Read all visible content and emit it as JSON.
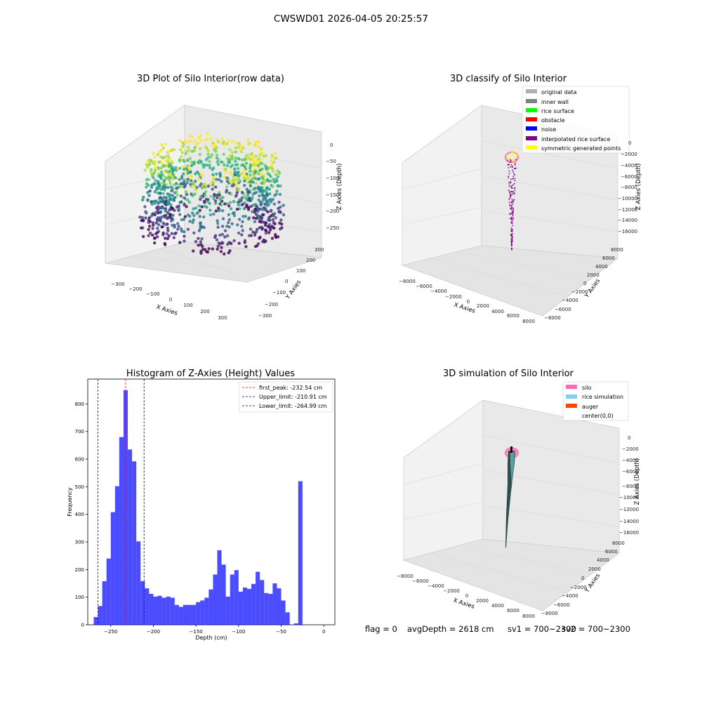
{
  "figure": {
    "suptitle": "CWSWD01 2026-04-05 20:25:57",
    "status": {
      "flag": "flag = 0",
      "avg_depth": "avgDepth = 2618 cm",
      "sv1": "sv1 = 700~2300",
      "sv2": "sv2 = 700~2300"
    }
  },
  "panels": {
    "raw": {
      "title": "3D Plot of Silo Interior(row data)",
      "xlabel": "X Axies",
      "ylabel": "Y Axies",
      "zlabel": "Z Axies (Depth)",
      "x_ticks": [
        "−300",
        "−200",
        "−100",
        "0",
        "100",
        "200",
        "300"
      ],
      "y_ticks": [
        "−300",
        "−200",
        "−100",
        "0",
        "100",
        "200",
        "300"
      ],
      "z_ticks": [
        "0",
        "−50",
        "−100",
        "−150",
        "−200",
        "−250"
      ]
    },
    "classify": {
      "title": "3D classify of Silo Interior",
      "xlabel": "X Axies",
      "ylabel": "Y Axies",
      "zlabel": "Z Axies (Depth)",
      "x_ticks": [
        "−8000",
        "−6000",
        "−4000",
        "−2000",
        "0",
        "2000",
        "4000",
        "6000",
        "8000"
      ],
      "y_ticks": [
        "−8000",
        "−6000",
        "−4000",
        "−2000",
        "0",
        "2000",
        "4000",
        "6000",
        "8000"
      ],
      "z_ticks": [
        "0",
        "−2000",
        "−4000",
        "−6000",
        "−8000",
        "−10000",
        "−12000",
        "−14000",
        "−16000"
      ],
      "legend": [
        {
          "label": "original data",
          "color": "#b0b0b0"
        },
        {
          "label": "inner wall",
          "color": "#808080"
        },
        {
          "label": "rice surface",
          "color": "#00ff00"
        },
        {
          "label": "obstacle",
          "color": "#ff0000"
        },
        {
          "label": "noise",
          "color": "#0000ff"
        },
        {
          "label": "interpolated rice surface",
          "color": "#800080"
        },
        {
          "label": "symmetric generated points",
          "color": "#ffff00"
        }
      ]
    },
    "simulation": {
      "title": "3D simulation of Silo Interior",
      "xlabel": "X Axies",
      "ylabel": "Y Axies",
      "zlabel": "Z Axies (Depth)",
      "x_ticks": [
        "−8000",
        "−6000",
        "−4000",
        "−2000",
        "0",
        "2000",
        "4000",
        "6000",
        "8000"
      ],
      "y_ticks": [
        "−8000",
        "−6000",
        "−4000",
        "−2000",
        "0",
        "2000",
        "4000",
        "6000",
        "8000"
      ],
      "z_ticks": [
        "0",
        "−2000",
        "−4000",
        "−6000",
        "−8000",
        "−10000",
        "−12000",
        "−14000",
        "−16000"
      ],
      "legend": [
        {
          "label": "silo",
          "color": "#ff69b4"
        },
        {
          "label": "rice simulation",
          "color": "#87ceeb"
        },
        {
          "label": "auger",
          "color": "#ff4500"
        },
        {
          "label": "center(0,0)",
          "color": ""
        }
      ]
    }
  },
  "chart_data": [
    {
      "type": "bar",
      "title": "Histogram of Z-Axies (Height) Values",
      "xlabel": "Depth (cm)",
      "ylabel": "Frequency",
      "xlim": [
        -277,
        13
      ],
      "ylim": [
        0,
        890
      ],
      "x_ticks": [
        -250,
        -200,
        -150,
        -100,
        -50,
        0
      ],
      "y_ticks": [
        0,
        100,
        200,
        300,
        400,
        500,
        600,
        700,
        800
      ],
      "bar_color": "#0000ff",
      "bar_opacity": 0.7,
      "grid": false,
      "legend_position": "upper right",
      "bin_start": -270,
      "bin_width": 5,
      "values": [
        28,
        68,
        158,
        240,
        408,
        502,
        680,
        850,
        635,
        592,
        302,
        158,
        132,
        112,
        102,
        105,
        98,
        102,
        98,
        72,
        65,
        72,
        72,
        72,
        82,
        88,
        98,
        128,
        182,
        270,
        218,
        102,
        182,
        198,
        120,
        135,
        130,
        148,
        192,
        162,
        115,
        112,
        150,
        132,
        88,
        45,
        0,
        5,
        520
      ],
      "vlines": [
        {
          "label": "first_peak: -232.54 cm",
          "x": -232.54,
          "color": "#ff0000"
        },
        {
          "label": "Upper_limit: -210.91 cm",
          "x": -210.91,
          "color": "#00008b"
        },
        {
          "label": "Lower_limit: -264.99 cm",
          "x": -264.99,
          "color": "#00008b"
        }
      ]
    }
  ]
}
